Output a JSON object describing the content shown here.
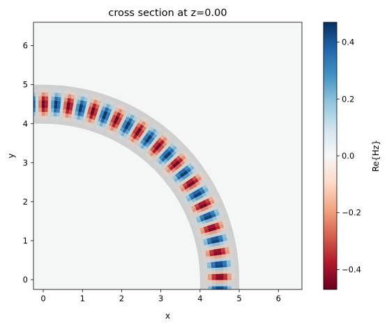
{
  "chart_data": {
    "type": "heatmap",
    "title": "cross section at z=0.00",
    "xlabel": "x",
    "ylabel": "y",
    "xlim": [
      -0.25,
      6.6
    ],
    "ylim": [
      -0.25,
      6.6
    ],
    "x_ticks": [
      0,
      1,
      2,
      3,
      4,
      5,
      6
    ],
    "y_ticks": [
      0,
      1,
      2,
      3,
      4,
      5,
      6
    ],
    "colorbar": {
      "label": "Re{Hz}",
      "range": [
        -0.47,
        0.47
      ],
      "ticks": [
        -0.4,
        -0.2,
        0.0,
        0.2,
        0.4
      ],
      "tick_labels": [
        "−0.4",
        "−0.2",
        "0.0",
        "0.2",
        "0.4"
      ],
      "colormap": "RdBu",
      "colors": [
        "#67001f",
        "#b2182b",
        "#d6604d",
        "#f4a582",
        "#fddbc7",
        "#f7f7f7",
        "#d1e5f0",
        "#92c5de",
        "#4393c3",
        "#2166ac",
        "#053061"
      ]
    },
    "structure": {
      "shape": "quarter-ring waveguide bend",
      "center": [
        0,
        0
      ],
      "inner_radius": 4.0,
      "outer_radius": 5.0,
      "straight_section": {
        "x": [
          4.0,
          5.0
        ],
        "y": [
          -0.25,
          0.0
        ]
      },
      "color": "#c8c8c8"
    },
    "field": {
      "amplitude": 0.47,
      "wavelength_along_path": 0.635,
      "mode": "fundamental, peaked at waveguide center"
    },
    "background_color": "#f5f6f6"
  }
}
